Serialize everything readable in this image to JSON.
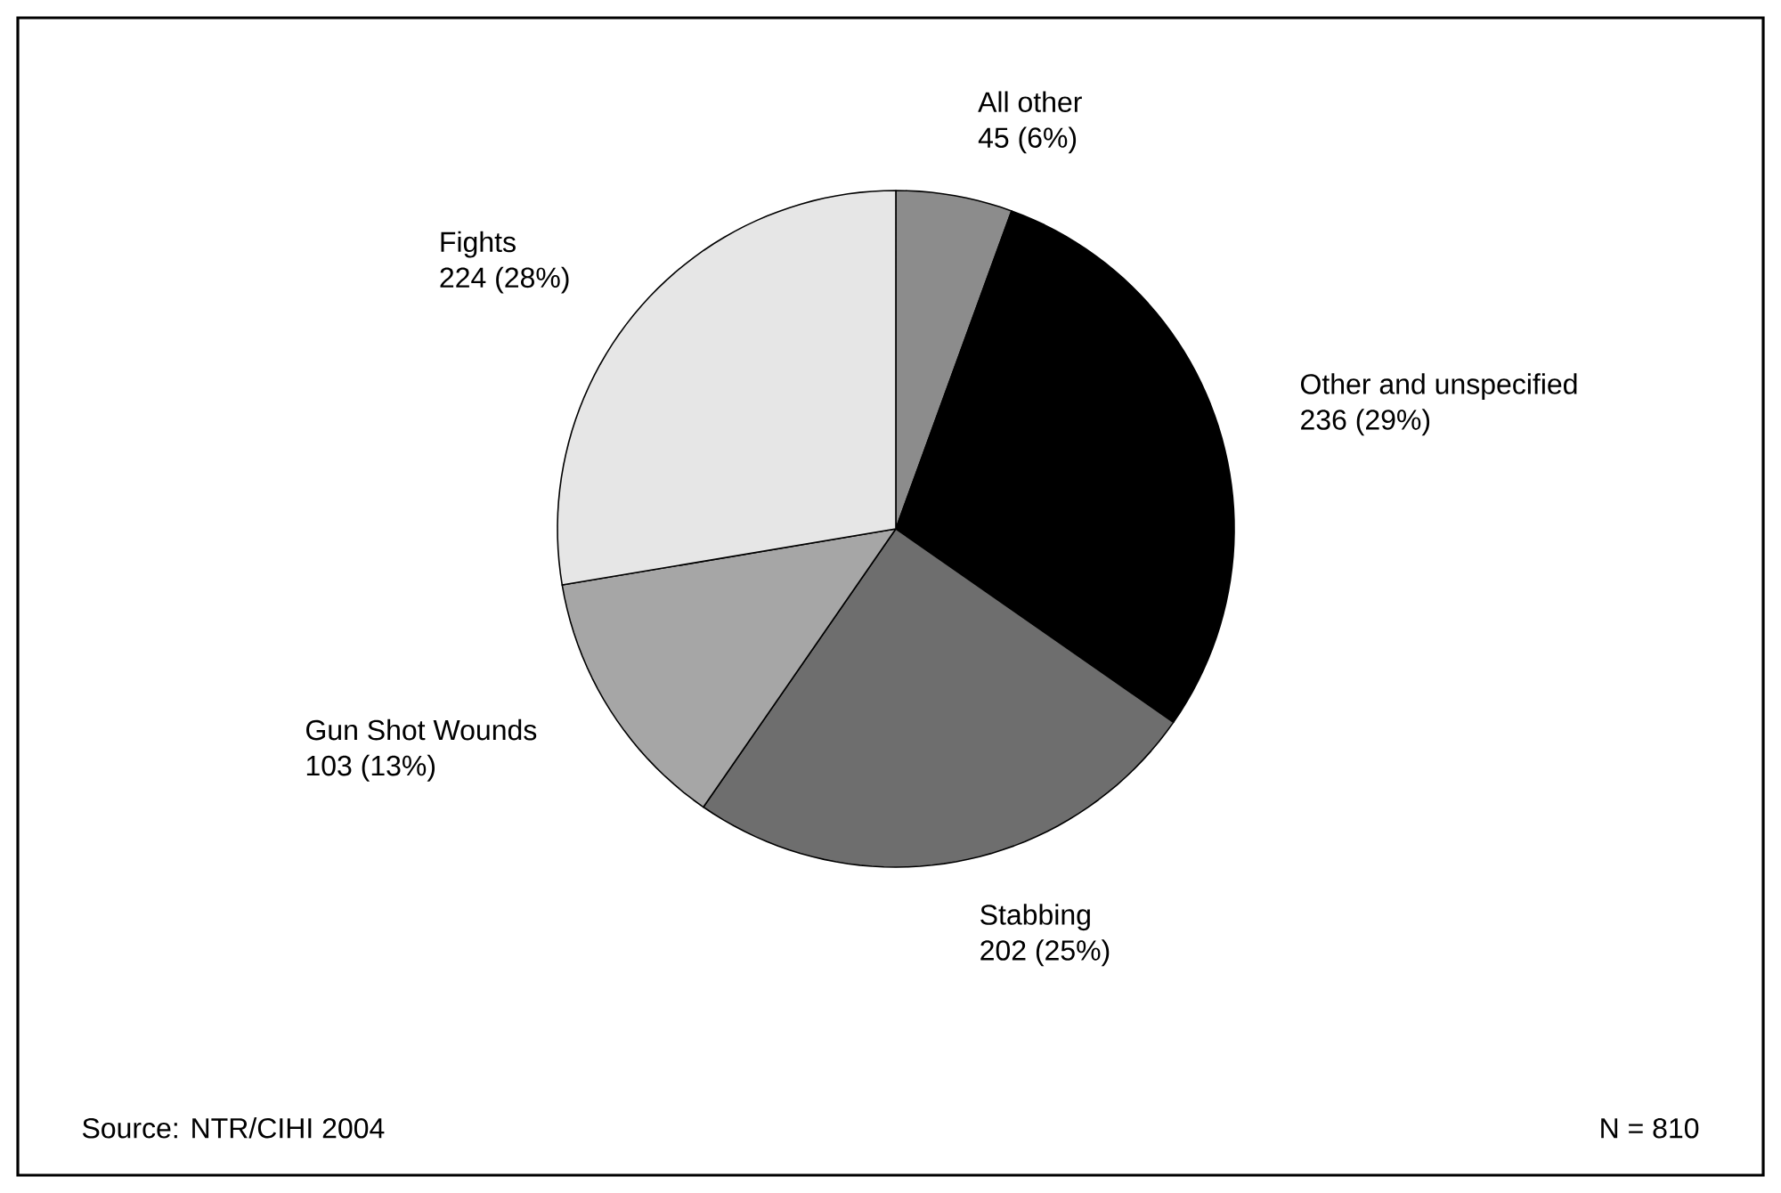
{
  "chart_data": {
    "type": "pie",
    "categories": [
      "All other",
      "Other and unspecified",
      "Stabbing",
      "Gun Shot Wounds",
      "Fights"
    ],
    "values": [
      45,
      236,
      202,
      103,
      224
    ],
    "value_labels": [
      "45 (6%)",
      "236 (29%)",
      "202 (25%)",
      "103 (13%)",
      "224 (28%)"
    ],
    "colors": [
      "#8c8c8c",
      "#000000",
      "#6e6e6e",
      "#a6a6a6",
      "#e6e6e6"
    ],
    "annotations": [
      "Source: NTR/CIHI 2004",
      "N = 810"
    ]
  }
}
